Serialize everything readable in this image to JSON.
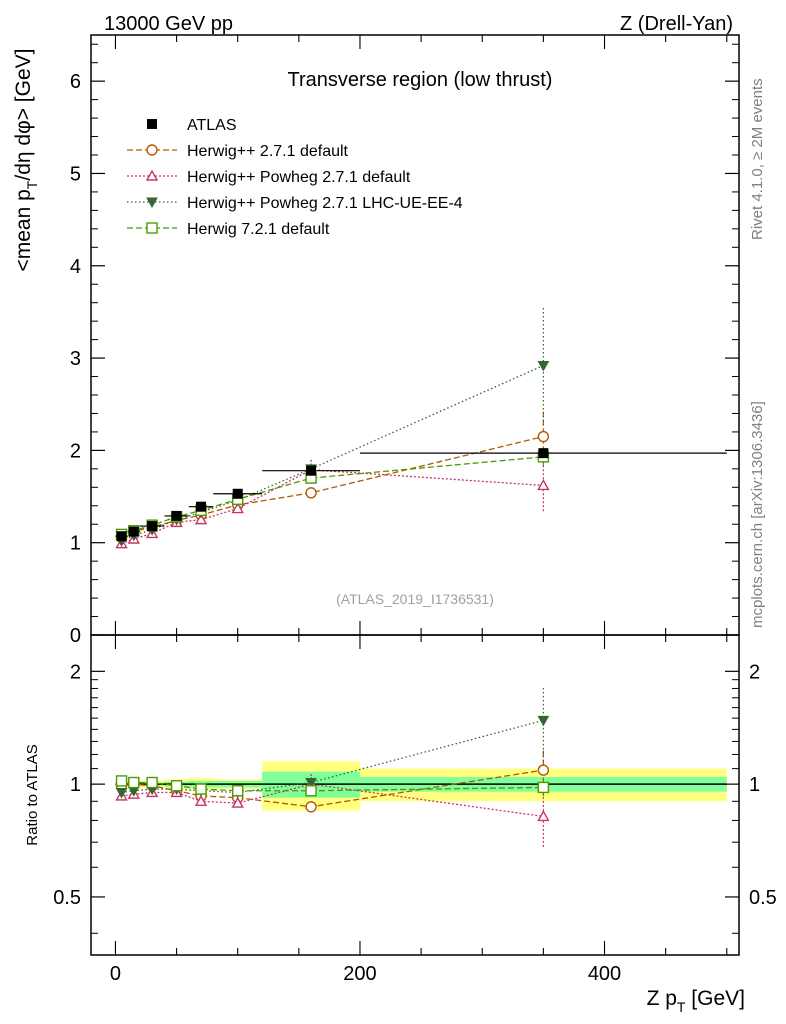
{
  "header": {
    "left": "13000 GeV pp",
    "right": "Z (Drell-Yan)"
  },
  "side_labels": {
    "rivet": "Rivet 4.1.0, ≥ 2M events",
    "mcplots": "mcplots.cern.ch [arXiv:1306.3436]"
  },
  "chart_data": [
    {
      "type": "line",
      "title": "Transverse region (low thrust)",
      "watermark": "(ATLAS_2019_I1736531)",
      "ylabel": "<mean p_T/dη dφ> [GeV]",
      "ylabel_parts": {
        "a": "<mean p",
        "sub": "T",
        "b": "/dη dφ> [GeV]"
      },
      "xlim": [
        -20,
        510
      ],
      "ylim": [
        0,
        6.5
      ],
      "yticks": [
        0,
        1,
        2,
        3,
        4,
        5,
        6
      ],
      "ytick_labels": [
        "0",
        "1",
        "2",
        "3",
        "4",
        "5",
        "6"
      ],
      "legend_position": "top-left",
      "data": {
        "name": "ATLAS",
        "x": [
          5,
          15,
          30,
          50,
          70,
          100,
          160,
          350
        ],
        "xerr": [
          5,
          5,
          10,
          10,
          10,
          20,
          40,
          150
        ],
        "y": [
          1.07,
          1.12,
          1.18,
          1.29,
          1.39,
          1.53,
          1.78,
          1.97
        ]
      },
      "series": [
        {
          "name": "Herwig++ 2.7.1 default",
          "color": "#b35900",
          "marker": "circle",
          "dash": "6,3",
          "x": [
            5,
            15,
            30,
            50,
            70,
            100,
            160,
            350
          ],
          "y": [
            1.06,
            1.12,
            1.17,
            1.24,
            1.3,
            1.41,
            1.54,
            2.15
          ],
          "err": [
            0.01,
            0.01,
            0.01,
            0.02,
            0.02,
            0.03,
            0.05,
            0.27
          ]
        },
        {
          "name": "Herwig++ Powheg 2.7.1 default",
          "color": "#cc3366",
          "marker": "triangle-up",
          "dash": "2,2",
          "x": [
            5,
            15,
            30,
            50,
            70,
            100,
            160,
            350
          ],
          "y": [
            0.99,
            1.04,
            1.1,
            1.22,
            1.25,
            1.37,
            1.79,
            1.62
          ],
          "err": [
            0.01,
            0.01,
            0.01,
            0.02,
            0.02,
            0.03,
            0.13,
            0.28
          ]
        },
        {
          "name": "Herwig++ Powheg 2.7.1 LHC-UE-EE-4",
          "color": "#336633",
          "marker": "triangle-down",
          "dash": "1.5,2.5",
          "x": [
            5,
            15,
            30,
            50,
            70,
            100,
            160,
            350
          ],
          "y": [
            1.02,
            1.08,
            1.14,
            1.25,
            1.33,
            1.46,
            1.8,
            2.92
          ],
          "err": [
            0.01,
            0.01,
            0.01,
            0.02,
            0.02,
            0.03,
            0.09,
            0.65
          ]
        },
        {
          "name": "Herwig 7.2.1 default",
          "color": "#4d9900",
          "marker": "square",
          "dash": "6,3",
          "x": [
            5,
            15,
            30,
            50,
            70,
            100,
            160,
            350
          ],
          "y": [
            1.09,
            1.13,
            1.19,
            1.28,
            1.35,
            1.47,
            1.7,
            1.93
          ],
          "err": [
            0.01,
            0.01,
            0.01,
            0.02,
            0.02,
            0.03,
            0.05,
            0.1
          ]
        }
      ]
    },
    {
      "type": "line",
      "title": "",
      "ylabel": "Ratio to ATLAS",
      "xlabel": "Z p_T [GeV]",
      "xlabel_parts": {
        "a": "Z p",
        "sub": "T",
        "b": " [GeV]"
      },
      "xlim": [
        -20,
        510
      ],
      "ylim": [
        0.35,
        2.5
      ],
      "yscale": "log",
      "xticks": [
        0,
        200,
        400
      ],
      "xtick_labels": [
        "0",
        "200",
        "400"
      ],
      "yticks": [
        0.5,
        1,
        2
      ],
      "ytick_labels": [
        "0.5",
        "1",
        "2"
      ],
      "bands": [
        {
          "x0": 0,
          "x1": 10,
          "stat": 0.01,
          "total": 0.02
        },
        {
          "x0": 10,
          "x1": 20,
          "stat": 0.01,
          "total": 0.02
        },
        {
          "x0": 20,
          "x1": 40,
          "stat": 0.01,
          "total": 0.02
        },
        {
          "x0": 40,
          "x1": 60,
          "stat": 0.015,
          "total": 0.03
        },
        {
          "x0": 60,
          "x1": 80,
          "stat": 0.02,
          "total": 0.04
        },
        {
          "x0": 80,
          "x1": 120,
          "stat": 0.02,
          "total": 0.03
        },
        {
          "x0": 120,
          "x1": 200,
          "stat": 0.08,
          "total": 0.15
        },
        {
          "x0": 200,
          "x1": 500,
          "stat": 0.045,
          "total": 0.1
        }
      ],
      "series": [
        {
          "name": "Herwig++ 2.7.1 default",
          "x": [
            5,
            15,
            30,
            50,
            70,
            100,
            160,
            350
          ],
          "y": [
            0.99,
            1.0,
            0.99,
            0.96,
            0.93,
            0.92,
            0.87,
            1.09
          ],
          "err": [
            0.01,
            0.01,
            0.01,
            0.02,
            0.02,
            0.02,
            0.03,
            0.14
          ]
        },
        {
          "name": "Herwig++ Powheg 2.7.1 default",
          "x": [
            5,
            15,
            30,
            50,
            70,
            100,
            160,
            350
          ],
          "y": [
            0.93,
            0.94,
            0.95,
            0.95,
            0.9,
            0.89,
            1.0,
            0.82
          ],
          "err": [
            0.01,
            0.01,
            0.01,
            0.02,
            0.02,
            0.02,
            0.07,
            0.14
          ]
        },
        {
          "name": "Herwig++ Powheg 2.7.1 LHC-UE-EE-4",
          "x": [
            5,
            15,
            30,
            50,
            70,
            100,
            160,
            350
          ],
          "y": [
            0.95,
            0.96,
            0.97,
            0.97,
            0.96,
            0.95,
            1.01,
            1.48
          ],
          "err": [
            0.01,
            0.01,
            0.01,
            0.02,
            0.02,
            0.02,
            0.05,
            0.33
          ]
        },
        {
          "name": "Herwig 7.2.1 default",
          "x": [
            5,
            15,
            30,
            50,
            70,
            100,
            160,
            350
          ],
          "y": [
            1.02,
            1.01,
            1.01,
            0.99,
            0.97,
            0.96,
            0.96,
            0.98
          ],
          "err": [
            0.01,
            0.01,
            0.01,
            0.02,
            0.02,
            0.02,
            0.03,
            0.05
          ]
        }
      ]
    }
  ]
}
